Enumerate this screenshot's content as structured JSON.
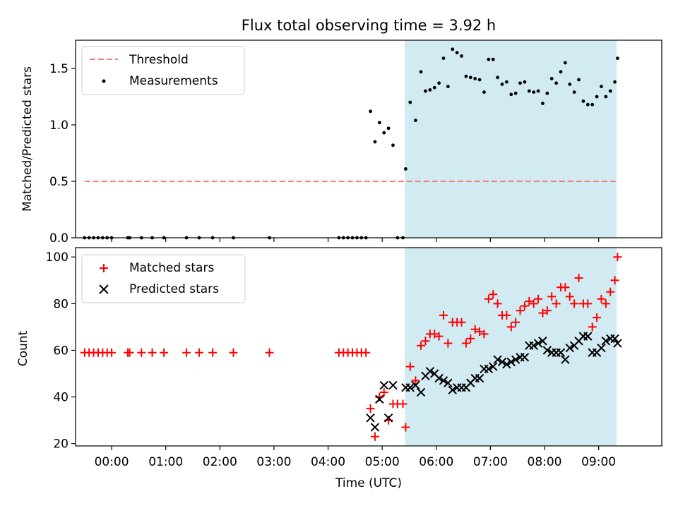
{
  "title": "Flux total observing time = 3.92 h",
  "chart_data": [
    {
      "type": "scatter",
      "ylabel": "Matched/Predicted stars",
      "ylim": [
        0,
        1.75
      ],
      "yticks": [
        "0.0",
        "0.5",
        "1.0",
        "1.5"
      ],
      "ytick_values": [
        0,
        0.5,
        1.0,
        1.5
      ],
      "legend": {
        "placement": "top-left",
        "entries": [
          "Threshold",
          "Measurements"
        ]
      },
      "threshold": {
        "label": "Threshold",
        "value": 0.5,
        "x_start": "23:30",
        "x_end": "09:20",
        "color": "#f08080"
      },
      "shaded_region": {
        "start": "05:25",
        "end": "09:20",
        "color": "#add8e6"
      },
      "series": [
        {
          "name": "Measurements",
          "color": "#000000",
          "x": [
            "23:30",
            "23:35",
            "23:40",
            "23:45",
            "23:50",
            "23:55",
            "00:00",
            "00:18",
            "00:20",
            "00:33",
            "00:45",
            "00:58",
            "01:23",
            "01:37",
            "01:52",
            "02:15",
            "02:55",
            "04:12",
            "04:17",
            "04:22",
            "04:27",
            "04:32",
            "04:37",
            "04:42",
            "04:47",
            "04:52",
            "04:57",
            "05:02",
            "05:07",
            "05:12",
            "05:17",
            "05:23",
            "05:26",
            "05:31",
            "05:37",
            "05:43",
            "05:48",
            "05:53",
            "05:58",
            "06:03",
            "06:08",
            "06:13",
            "06:18",
            "06:23",
            "06:28",
            "06:33",
            "06:38",
            "06:43",
            "06:48",
            "06:53",
            "06:58",
            "07:03",
            "07:08",
            "07:13",
            "07:18",
            "07:23",
            "07:28",
            "07:33",
            "07:38",
            "07:43",
            "07:48",
            "07:53",
            "07:58",
            "08:03",
            "08:08",
            "08:13",
            "08:18",
            "08:23",
            "08:28",
            "08:33",
            "08:38",
            "08:43",
            "08:48",
            "08:53",
            "08:58",
            "09:03",
            "09:08",
            "09:13",
            "09:18",
            "09:21"
          ],
          "y": [
            0,
            0,
            0,
            0,
            0,
            0,
            0,
            0,
            0,
            0,
            0,
            0,
            0,
            0,
            0,
            0,
            0,
            0,
            0,
            0,
            0,
            0,
            0,
            0,
            1.12,
            0.85,
            1.02,
            0.93,
            0.97,
            0.82,
            0,
            0,
            0.61,
            1.2,
            1.04,
            1.47,
            1.3,
            1.31,
            1.33,
            1.37,
            1.59,
            1.34,
            1.67,
            1.64,
            1.61,
            1.43,
            1.42,
            1.41,
            1.4,
            1.29,
            1.58,
            1.58,
            1.42,
            1.36,
            1.38,
            1.27,
            1.28,
            1.37,
            1.38,
            1.3,
            1.29,
            1.3,
            1.19,
            1.28,
            1.41,
            1.37,
            1.47,
            1.55,
            1.36,
            1.29,
            1.4,
            1.21,
            1.18,
            1.18,
            1.25,
            1.34,
            1.25,
            1.3,
            1.38,
            1.59
          ]
        }
      ]
    },
    {
      "type": "scatter",
      "xlabel": "Time (UTC)",
      "ylabel": "Count",
      "ylim": [
        19,
        104
      ],
      "yticks": [
        "20",
        "40",
        "60",
        "80",
        "100"
      ],
      "ytick_values": [
        20,
        40,
        60,
        80,
        100
      ],
      "xticks": [
        "00:00",
        "01:00",
        "02:00",
        "03:00",
        "04:00",
        "05:00",
        "06:00",
        "07:00",
        "08:00",
        "09:00"
      ],
      "xlim": [
        "23:20",
        "10:10"
      ],
      "legend": {
        "placement": "top-left",
        "entries": [
          "Matched stars",
          "Predicted stars"
        ]
      },
      "shaded_region": {
        "start": "05:25",
        "end": "09:20",
        "color": "#add8e6"
      },
      "series": [
        {
          "name": "Matched stars",
          "marker": "+",
          "color": "#ff0000",
          "x": [
            "23:30",
            "23:35",
            "23:40",
            "23:45",
            "23:50",
            "23:55",
            "00:00",
            "00:18",
            "00:20",
            "00:33",
            "00:45",
            "00:58",
            "01:23",
            "01:37",
            "01:52",
            "02:15",
            "02:55",
            "04:12",
            "04:17",
            "04:22",
            "04:27",
            "04:32",
            "04:37",
            "04:42",
            "04:47",
            "04:52",
            "04:57",
            "05:02",
            "05:07",
            "05:12",
            "05:17",
            "05:23",
            "05:26",
            "05:31",
            "05:37",
            "05:43",
            "05:48",
            "05:53",
            "05:58",
            "06:03",
            "06:08",
            "06:13",
            "06:18",
            "06:23",
            "06:28",
            "06:33",
            "06:38",
            "06:43",
            "06:48",
            "06:53",
            "06:58",
            "07:03",
            "07:08",
            "07:13",
            "07:18",
            "07:23",
            "07:28",
            "07:33",
            "07:38",
            "07:43",
            "07:48",
            "07:53",
            "07:58",
            "08:03",
            "08:08",
            "08:13",
            "08:18",
            "08:23",
            "08:28",
            "08:33",
            "08:38",
            "08:43",
            "08:48",
            "08:53",
            "08:58",
            "09:03",
            "09:08",
            "09:13",
            "09:18",
            "09:21"
          ],
          "y": [
            59,
            59,
            59,
            59,
            59,
            59,
            59,
            59,
            59,
            59,
            59,
            59,
            59,
            59,
            59,
            59,
            59,
            59,
            59,
            59,
            59,
            59,
            59,
            59,
            35,
            23,
            40,
            42,
            30,
            37,
            37,
            37,
            27,
            53,
            47,
            62,
            64,
            67,
            67,
            66,
            75,
            63,
            72,
            72,
            72,
            63,
            65,
            69,
            68,
            67,
            82,
            84,
            80,
            75,
            75,
            70,
            72,
            77,
            79,
            81,
            80,
            82,
            76,
            77,
            83,
            80,
            87,
            87,
            83,
            80,
            91,
            80,
            80,
            70,
            74,
            82,
            80,
            85,
            90,
            100
          ]
        },
        {
          "name": "Predicted stars",
          "marker": "x",
          "color": "#000000",
          "x": [
            "04:47",
            "04:52",
            "04:57",
            "05:02",
            "05:07",
            "05:12",
            "05:26",
            "05:31",
            "05:37",
            "05:43",
            "05:48",
            "05:53",
            "05:58",
            "06:03",
            "06:08",
            "06:13",
            "06:18",
            "06:23",
            "06:28",
            "06:33",
            "06:38",
            "06:43",
            "06:48",
            "06:53",
            "06:58",
            "07:03",
            "07:08",
            "07:13",
            "07:18",
            "07:23",
            "07:28",
            "07:33",
            "07:38",
            "07:43",
            "07:48",
            "07:53",
            "07:58",
            "08:03",
            "08:08",
            "08:13",
            "08:18",
            "08:23",
            "08:28",
            "08:33",
            "08:38",
            "08:43",
            "08:48",
            "08:53",
            "08:58",
            "09:03",
            "09:08",
            "09:13",
            "09:18",
            "09:21"
          ],
          "y": [
            31,
            27,
            39,
            45,
            31,
            45,
            44,
            44,
            45,
            42,
            49,
            51,
            50,
            48,
            47,
            46,
            43,
            44,
            44,
            44,
            46,
            48,
            48,
            52,
            52,
            53,
            56,
            55,
            54,
            55,
            56,
            57,
            57,
            62,
            62,
            63,
            64,
            60,
            59,
            59,
            59,
            56,
            61,
            62,
            64,
            66,
            66,
            59,
            59,
            61,
            64,
            65,
            65,
            63
          ]
        }
      ]
    }
  ]
}
